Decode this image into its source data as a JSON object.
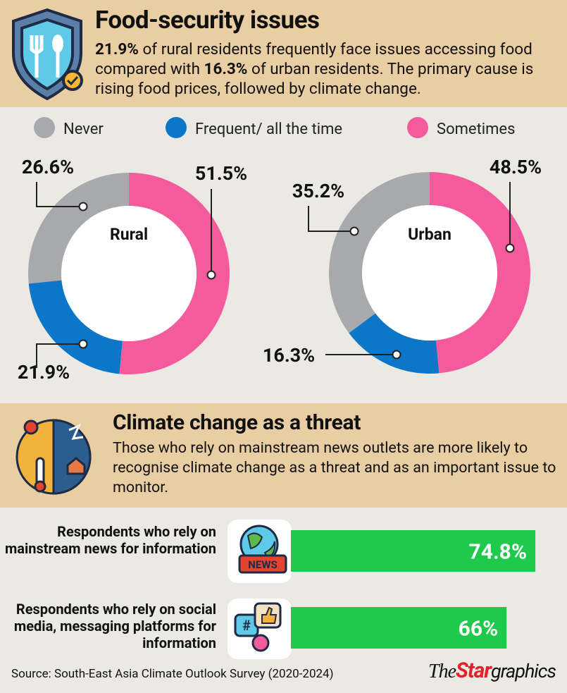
{
  "header": {
    "title": "Food-security issues",
    "summary": [
      {
        "text": "21.9%",
        "bold": true
      },
      {
        "text": " of rural residents frequently face issues accessing food compared with ",
        "bold": false
      },
      {
        "text": "16.3%",
        "bold": true
      },
      {
        "text": " of urban residents. The primary cause is rising food prices, followed by climate change.",
        "bold": false
      }
    ]
  },
  "legend": [
    {
      "name": "Never",
      "color": "#a7a9ac"
    },
    {
      "name": "Frequent/ all the time",
      "color": "#0c77c8"
    },
    {
      "name": "Sometimes",
      "color": "#f45b9d"
    }
  ],
  "chart_data": [
    {
      "type": "donut",
      "title": "Rural",
      "values": [
        26.6,
        21.9,
        51.5
      ],
      "value_labels": [
        "26.6%",
        "21.9%",
        "51.5%"
      ]
    },
    {
      "type": "donut",
      "title": "Urban",
      "values": [
        35.2,
        16.3,
        48.5
      ],
      "value_labels": [
        "35.2%",
        "16.3%",
        "48.5%"
      ]
    },
    {
      "type": "bar",
      "orientation": "horizontal",
      "color": "#1ec94c",
      "categories": [
        "Respondents who rely on mainstream news for information",
        "Respondents who rely on social media, messaging platforms for information"
      ],
      "values": [
        74.8,
        66
      ],
      "value_labels": [
        "74.8%",
        "66%"
      ]
    }
  ],
  "section": {
    "title": "Climate change as a threat",
    "text": "Those who rely on mainstream news outlets are more likely to recognise climate change as a threat and as an important issue to monitor."
  },
  "icon_text": "NEWS",
  "source": "Source: South-East Asia Climate Outlook Survey (2020-2024)",
  "logo": [
    "The",
    "Star",
    "graphics"
  ]
}
